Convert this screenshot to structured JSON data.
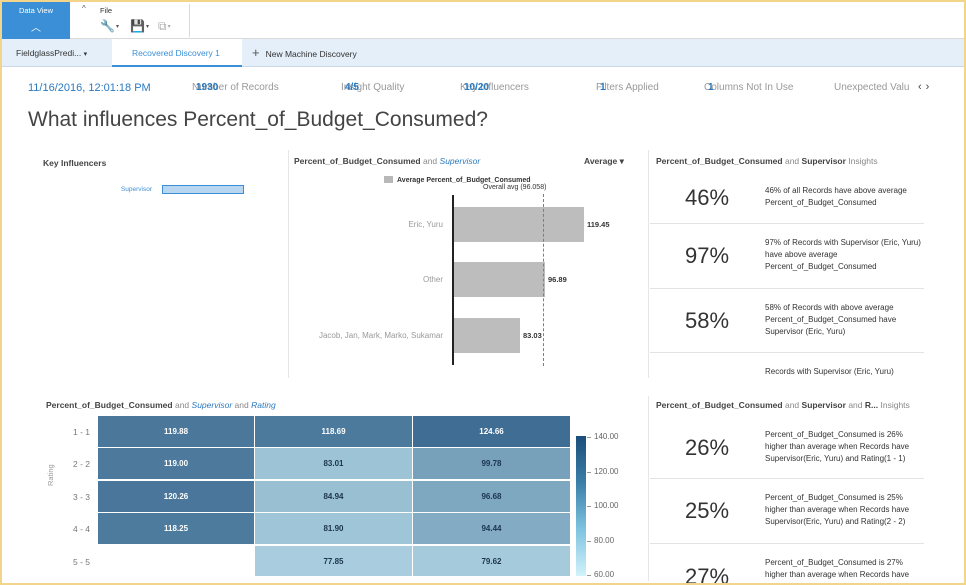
{
  "toolbar": {
    "data_view_label": "Data View",
    "data_view_chevron": "︿",
    "collapse_icon": "^",
    "file_label": "File",
    "icons": [
      "wrench-icon",
      "save-icon",
      "copy-icon"
    ]
  },
  "tabs": {
    "first": "FieldglassPredi...",
    "first_caret": "▾",
    "active": "Recovered Discovery 1",
    "new_plus": "+",
    "new": "New Machine Discovery"
  },
  "stats": {
    "timestamp": "11/16/2016, 12:01:18 PM",
    "records_label": "Number of Records",
    "records_value": "1930",
    "quality_label": "Insight Quality",
    "quality_value": "4/5",
    "influencers_label": "Key Influencers",
    "influencers_value": "10/20",
    "filters_label": "Filters Applied",
    "filters_value": "1",
    "columns_label": "Columns Not In Use",
    "columns_value": "1",
    "unexpected_label": "Unexpected Valu",
    "prev": "‹",
    "next": "›"
  },
  "title": "What influences Percent_of_Budget_Consumed?",
  "key_influencers": {
    "header": "Key Influencers",
    "items": [
      {
        "label": "Supervisor"
      }
    ]
  },
  "bar_panel": {
    "measure": "Percent_of_Budget_Consumed",
    "and": "and",
    "dimension": "Supervisor",
    "sort": "Average ▾",
    "legend": "Average Percent_of_Budget_Consumed",
    "overall": "Overall avg (96.058)"
  },
  "insights_top": {
    "measure": "Percent_of_Budget_Consumed",
    "and": "and",
    "dimension": "Supervisor",
    "suffix": "Insights",
    "items": [
      {
        "pct": "46%",
        "text": "46% of all Records have above average Percent_of_Budget_Consumed"
      },
      {
        "pct": "97%",
        "text": "97% of Records with Supervisor (Eric, Yuru) have above average Percent_of_Budget_Consumed"
      },
      {
        "pct": "58%",
        "text": "58% of Records with above average Percent_of_Budget_Consumed have Supervisor (Eric, Yuru)"
      },
      {
        "pct": "",
        "text": "Records with Supervisor (Eric, Yuru)"
      }
    ]
  },
  "heatmap_panel": {
    "measure": "Percent_of_Budget_Consumed",
    "and": "and",
    "dim1": "Supervisor",
    "and2": "and",
    "dim2": "Rating",
    "y_label": "Rating",
    "rows": [
      "1 - 1",
      "2 - 2",
      "3 - 3",
      "4 - 4",
      "5 - 5"
    ],
    "cells": [
      [
        "119.88",
        "118.69",
        "124.66"
      ],
      [
        "119.00",
        "83.01",
        "99.78"
      ],
      [
        "120.26",
        "84.94",
        "96.68"
      ],
      [
        "118.25",
        "81.90",
        "94.44"
      ],
      [
        "",
        "77.85",
        "79.62"
      ]
    ],
    "scale": [
      "140.00",
      "120.00",
      "100.00",
      "80.00",
      "60.00"
    ]
  },
  "insights_bottom": {
    "measure": "Percent_of_Budget_Consumed",
    "and": "and",
    "dimension": "Supervisor",
    "and2": "and",
    "dim2": "R...",
    "suffix": "Insights",
    "items": [
      {
        "pct": "26%",
        "text": "Percent_of_Budget_Consumed is 26% higher than average when Records have Supervisor(Eric, Yuru) and Rating(1 - 1)"
      },
      {
        "pct": "25%",
        "text": "Percent_of_Budget_Consumed is 25% higher than average when Records have Supervisor(Eric, Yuru) and Rating(2 - 2)"
      },
      {
        "pct": "27%",
        "text": "Percent_of_Budget_Consumed is 27% higher than average when Records have"
      }
    ]
  },
  "chart_data": [
    {
      "type": "bar",
      "orientation": "horizontal",
      "categories": [
        "Eric, Yuru",
        "Other",
        "Jacob, Jan, Mark, Marko, Sukamar"
      ],
      "values": [
        119.45,
        96.89,
        83.03
      ],
      "reference_line": 96.058,
      "title": "Percent_of_Budget_Consumed and Supervisor",
      "legend": [
        "Average Percent_of_Budget_Consumed"
      ],
      "xlim": [
        45,
        125
      ]
    },
    {
      "type": "heatmap",
      "y": [
        "1 - 1",
        "2 - 2",
        "3 - 3",
        "4 - 4",
        "5 - 5"
      ],
      "values": [
        [
          119.88,
          118.69,
          124.66
        ],
        [
          119.0,
          83.01,
          99.78
        ],
        [
          120.26,
          84.94,
          96.68
        ],
        [
          118.25,
          81.9,
          94.44
        ],
        [
          null,
          77.85,
          79.62
        ]
      ],
      "ylabel": "Rating",
      "title": "Percent_of_Budget_Consumed and Supervisor and Rating",
      "color_scale": [
        60,
        140
      ]
    }
  ]
}
